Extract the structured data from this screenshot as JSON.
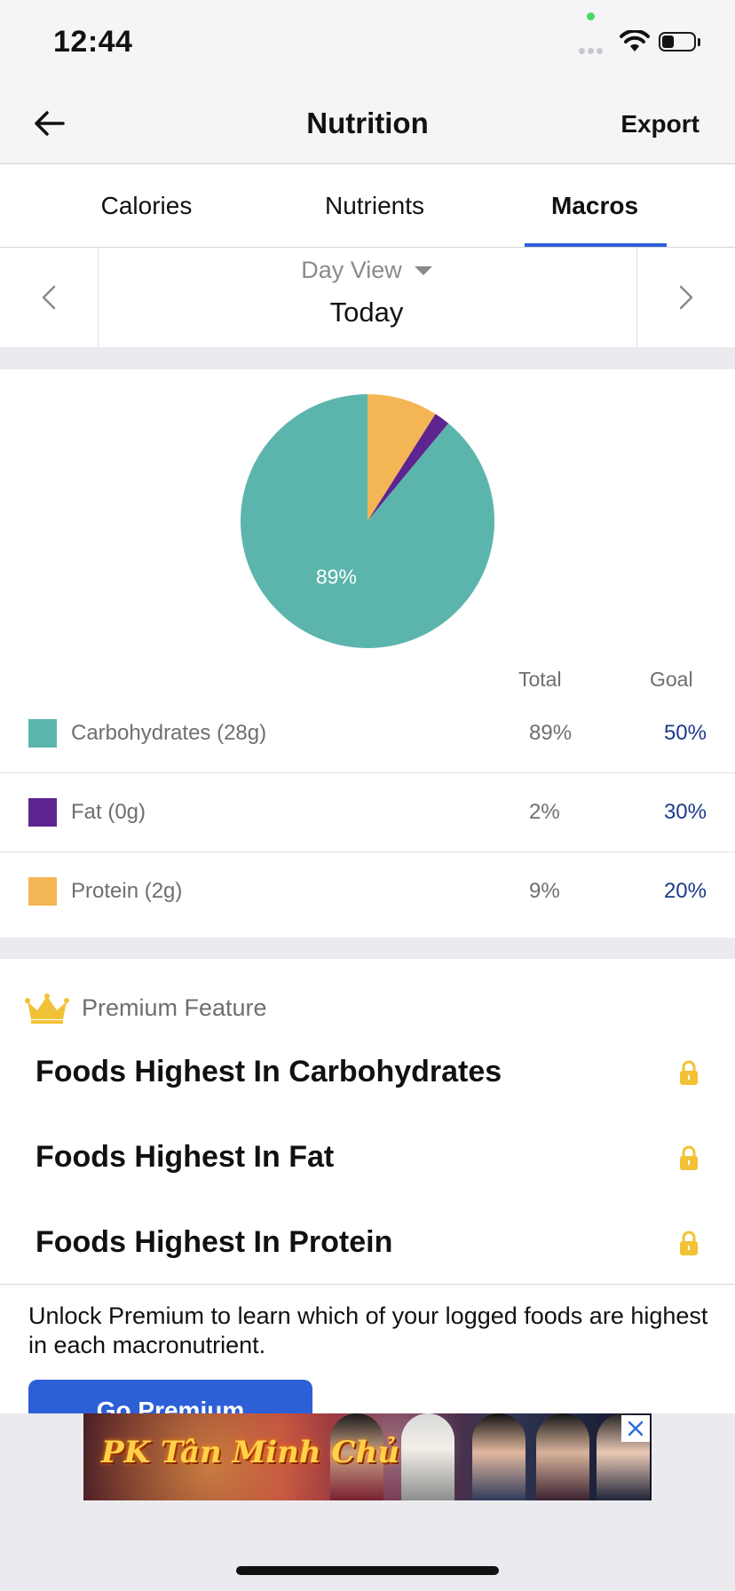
{
  "status_bar": {
    "time": "12:44"
  },
  "nav": {
    "title": "Nutrition",
    "export_label": "Export"
  },
  "tabs": [
    {
      "label": "Calories",
      "active": false
    },
    {
      "label": "Nutrients",
      "active": false
    },
    {
      "label": "Macros",
      "active": true
    }
  ],
  "date_nav": {
    "view_label": "Day View",
    "date_label": "Today"
  },
  "chart_data": {
    "type": "pie",
    "slices": [
      {
        "name": "Carbohydrates",
        "value": 89,
        "color": "#5bb5ad"
      },
      {
        "name": "Fat",
        "value": 2,
        "color": "#5e2590"
      },
      {
        "name": "Protein",
        "value": 9,
        "color": "#f4b554"
      }
    ],
    "data_labels": [
      "89%"
    ]
  },
  "macros": {
    "headers": {
      "total": "Total",
      "goal": "Goal"
    },
    "rows": [
      {
        "name": "Carbohydrates (28g)",
        "total": "89%",
        "goal": "50%",
        "color": "#5bb5ad"
      },
      {
        "name": "Fat (0g)",
        "total": "2%",
        "goal": "30%",
        "color": "#5e2590"
      },
      {
        "name": "Protein (2g)",
        "total": "9%",
        "goal": "20%",
        "color": "#f4b554"
      }
    ]
  },
  "premium": {
    "label": "Premium Feature",
    "items": [
      "Foods Highest In Carbohydrates",
      "Foods Highest In Fat",
      "Foods Highest In Protein"
    ],
    "unlock_text": "Unlock Premium to learn which of your logged foods are highest in each macronutrient.",
    "cta_label": "Go Premium"
  },
  "ad": {
    "text": "PK Tân Minh Chủ"
  },
  "colors": {
    "accent": "#2d5fd7",
    "goal_text": "#1b3a8a",
    "crown": "#f2c236"
  }
}
